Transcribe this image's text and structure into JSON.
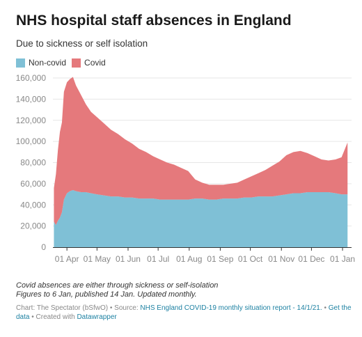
{
  "title": "NHS hospital staff absences in England",
  "subtitle": "Due to sickness or self isolation",
  "colors": {
    "noncovid": "#7fc0d6",
    "covid": "#e5797c",
    "grid": "#e6e6e6",
    "axis": "#333333",
    "link": "#1d81a2"
  },
  "legend": [
    {
      "label": "Non-covid",
      "color": "#7fc0d6"
    },
    {
      "label": "Covid",
      "color": "#e5797c"
    }
  ],
  "notes": [
    "Covid absences are either through sickness or self-isolation",
    "Figures to 6 Jan, published 14 Jan. Updated monthly."
  ],
  "footer": {
    "chart_by": "Chart: The Spectator (bSfwO) •",
    "source_prefix": "Source:",
    "source_link": "NHS England COVID-19 monthly situation report - 14/1/21.",
    "sep": "•",
    "get_data": "Get the data",
    "created_with": "• Created with",
    "datawrapper": "Datawrapper"
  },
  "chart_data": {
    "type": "area",
    "stacked": true,
    "ylim": [
      0,
      160000
    ],
    "yticks": [
      0,
      20000,
      40000,
      60000,
      80000,
      100000,
      120000,
      140000,
      160000
    ],
    "ytick_labels": [
      "0",
      "20,000",
      "40,000",
      "60,000",
      "80,000",
      "100,000",
      "120,000",
      "140,000",
      "160,000"
    ],
    "xlim": [
      "2020-03-18",
      "2021-01-10"
    ],
    "xticks": [
      "2020-04-01",
      "2020-05-01",
      "2020-06-01",
      "2020-07-01",
      "2020-08-01",
      "2020-09-01",
      "2020-10-01",
      "2020-11-01",
      "2020-12-01",
      "2021-01-01"
    ],
    "xtick_labels": [
      "01 Apr",
      "01 May",
      "01 Jun",
      "01 Jul",
      "01 Aug",
      "01 Sep",
      "01 Oct",
      "01 Nov",
      "01 Dec",
      "01 Jan"
    ],
    "grid": true,
    "legend_position": "top-left",
    "x": [
      "2020-03-19",
      "2020-03-21",
      "2020-03-23",
      "2020-03-25",
      "2020-03-27",
      "2020-03-29",
      "2020-04-01",
      "2020-04-04",
      "2020-04-07",
      "2020-04-10",
      "2020-04-15",
      "2020-04-20",
      "2020-04-25",
      "2020-05-01",
      "2020-05-08",
      "2020-05-15",
      "2020-05-22",
      "2020-05-29",
      "2020-06-05",
      "2020-06-12",
      "2020-06-19",
      "2020-06-26",
      "2020-07-03",
      "2020-07-10",
      "2020-07-17",
      "2020-07-24",
      "2020-07-31",
      "2020-08-07",
      "2020-08-14",
      "2020-08-21",
      "2020-08-28",
      "2020-09-04",
      "2020-09-11",
      "2020-09-18",
      "2020-09-25",
      "2020-10-02",
      "2020-10-09",
      "2020-10-16",
      "2020-10-23",
      "2020-10-30",
      "2020-11-06",
      "2020-11-13",
      "2020-11-20",
      "2020-11-27",
      "2020-12-04",
      "2020-12-11",
      "2020-12-18",
      "2020-12-25",
      "2020-12-31",
      "2021-01-06"
    ],
    "series": [
      {
        "name": "Non-covid",
        "values": [
          24000,
          21000,
          25000,
          28000,
          33000,
          45000,
          51000,
          53000,
          54000,
          53000,
          52000,
          52000,
          51000,
          50000,
          49000,
          48000,
          48000,
          47000,
          47000,
          46000,
          46000,
          46000,
          45000,
          45000,
          45000,
          45000,
          45000,
          46000,
          46000,
          45000,
          45000,
          46000,
          46000,
          46000,
          47000,
          47000,
          48000,
          48000,
          48000,
          49000,
          50000,
          51000,
          51000,
          52000,
          52000,
          52000,
          52000,
          51000,
          50000,
          50000
        ]
      },
      {
        "name": "Covid",
        "values": [
          32000,
          48000,
          67000,
          81000,
          85000,
          102000,
          105000,
          106000,
          107000,
          100000,
          92000,
          83000,
          77000,
          73000,
          68000,
          63000,
          59000,
          55000,
          51000,
          47000,
          44000,
          40000,
          38000,
          35000,
          33000,
          30000,
          27000,
          18000,
          15000,
          14000,
          14000,
          13000,
          14000,
          15000,
          17000,
          20000,
          22000,
          25000,
          29000,
          32000,
          37000,
          39000,
          40000,
          37000,
          34000,
          31000,
          30000,
          32000,
          35000,
          49000
        ]
      }
    ]
  }
}
